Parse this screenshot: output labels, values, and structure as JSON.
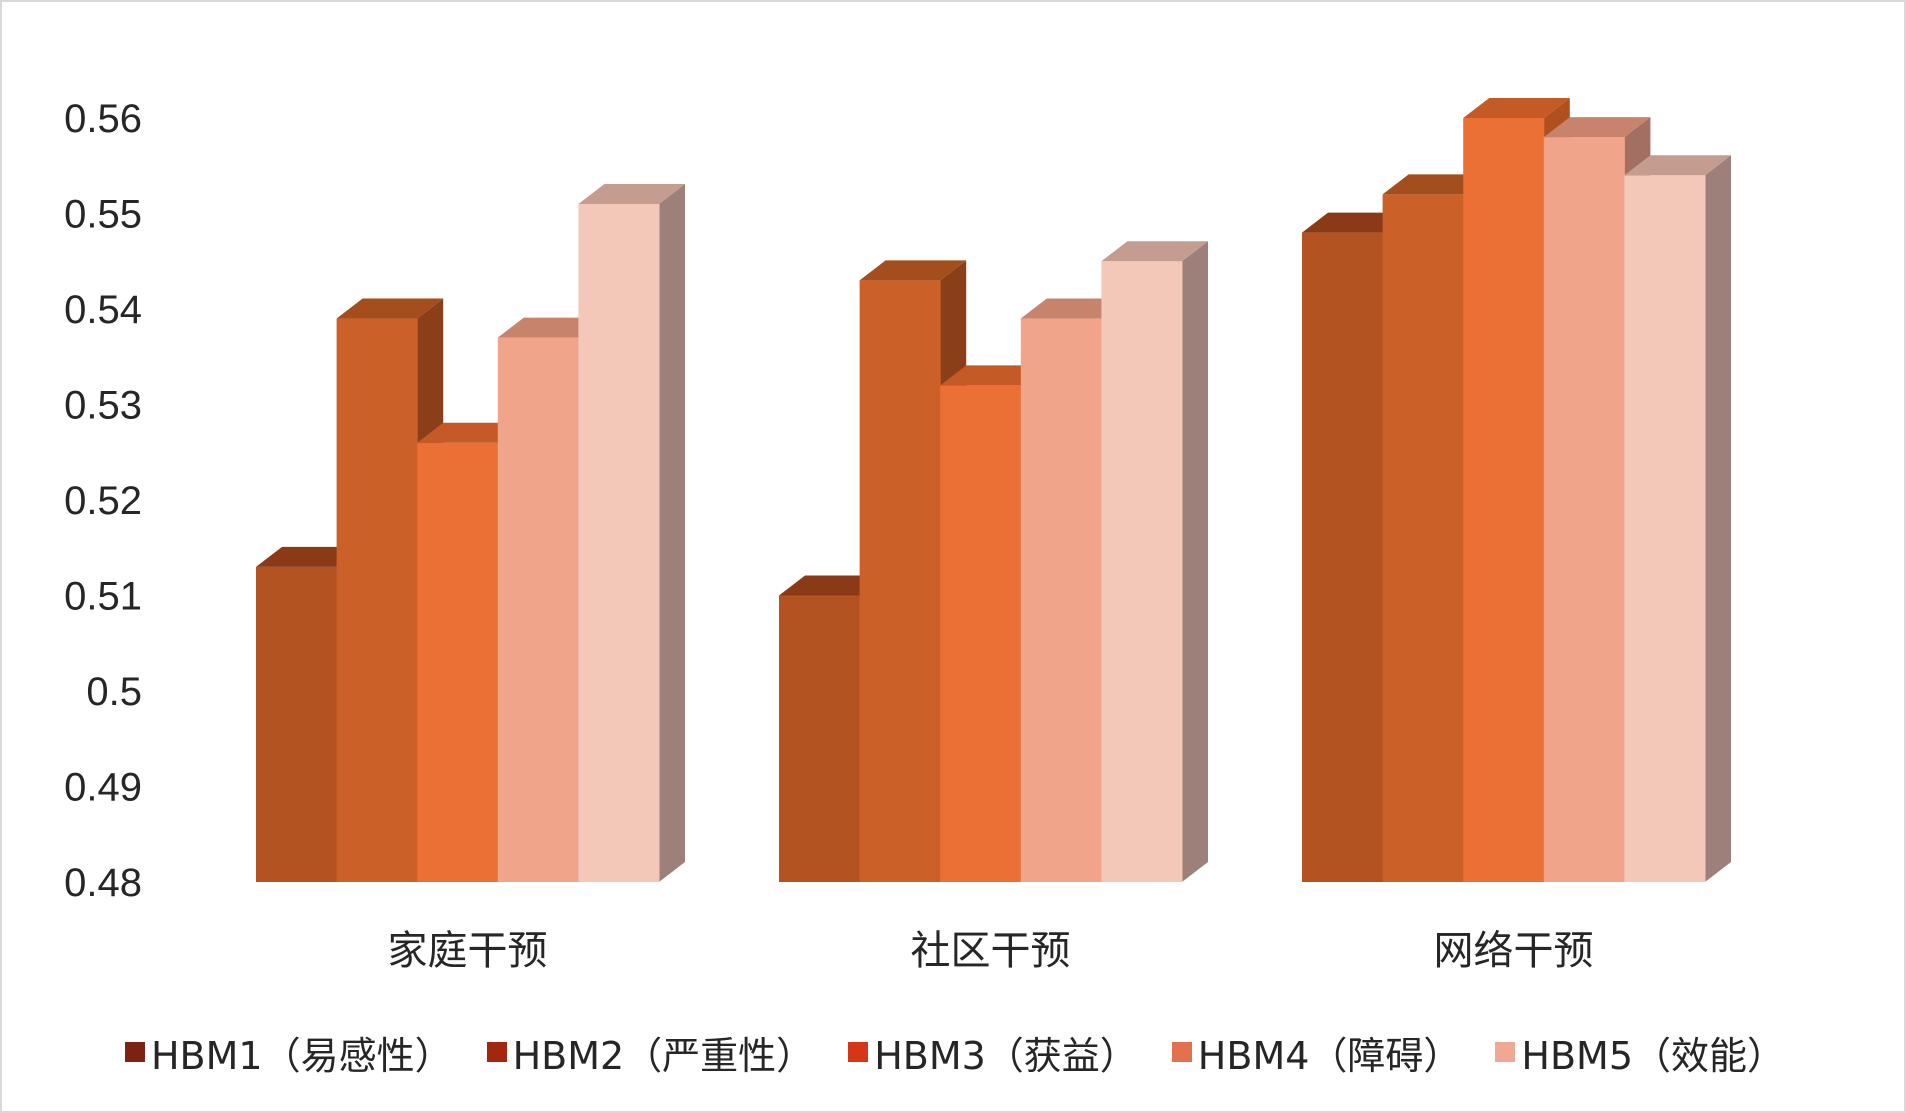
{
  "chart_data": {
    "type": "bar",
    "style": "3d-clustered-column",
    "categories": [
      "家庭干预",
      "社区干预",
      "网络干预"
    ],
    "series": [
      {
        "name": "HBM1（易感性）",
        "values": [
          0.513,
          0.51,
          0.548
        ],
        "front": "#b35322",
        "top": "#8b3a17",
        "side": "#7a3314",
        "legend_color": "#7b2212"
      },
      {
        "name": "HBM2（严重性）",
        "values": [
          0.539,
          0.543,
          0.552
        ],
        "front": "#cb6128",
        "top": "#a44d1d",
        "side": "#8a3f18",
        "legend_color": "#a3260f"
      },
      {
        "name": "HBM3（获益）",
        "values": [
          0.526,
          0.532,
          0.56
        ],
        "front": "#ea7035",
        "top": "#c45a25",
        "side": "#b0501f",
        "legend_color": "#d73517"
      },
      {
        "name": "HBM4（障碍）",
        "values": [
          0.537,
          0.539,
          0.558
        ],
        "front": "#f0a48a",
        "top": "#c8836d",
        "side": "#a26f62",
        "legend_color": "#e2714f"
      },
      {
        "name": "HBM5（效能）",
        "values": [
          0.551,
          0.545,
          0.554
        ],
        "front": "#f4c8b8",
        "top": "#c59c90",
        "side": "#9e807a",
        "legend_color": "#f0a893"
      }
    ],
    "yticks": [
      "0.48",
      "0.49",
      "0.5",
      "0.51",
      "0.52",
      "0.53",
      "0.54",
      "0.55",
      "0.56"
    ],
    "ylim": [
      0.48,
      0.56
    ],
    "title": "",
    "xlabel": "",
    "ylabel": "",
    "grid": false,
    "legend_position": "bottom"
  }
}
